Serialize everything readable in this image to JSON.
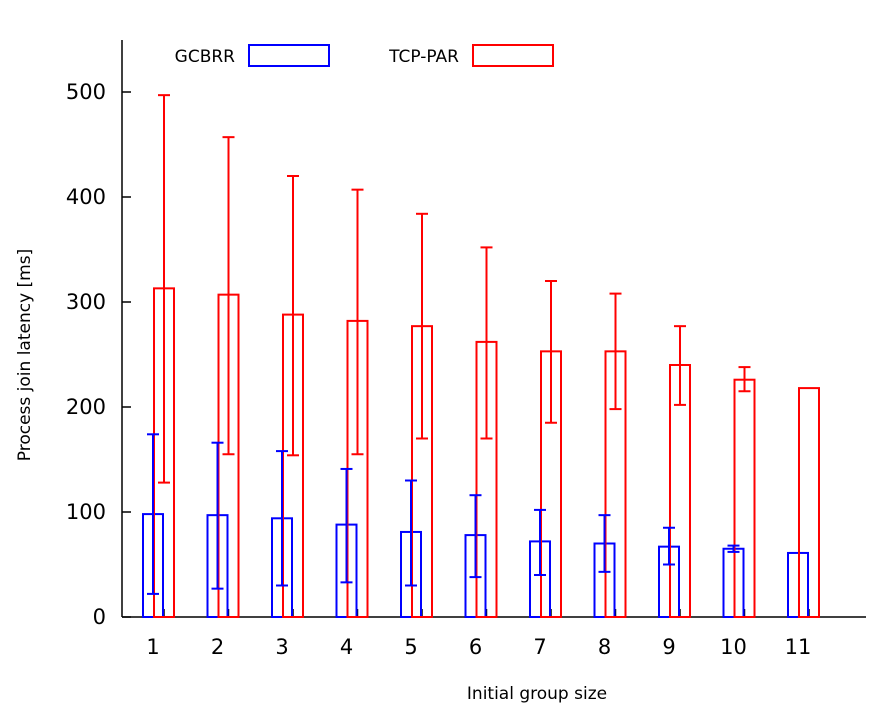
{
  "chart_data": {
    "type": "bar",
    "categories": [
      "1",
      "2",
      "3",
      "4",
      "5",
      "6",
      "7",
      "8",
      "9",
      "10",
      "11"
    ],
    "xlabel": "Initial group size",
    "ylabel": "Process join latency [ms]",
    "ylim": [
      0,
      550
    ],
    "yticks": [
      0,
      100,
      200,
      300,
      400,
      500
    ],
    "grid": false,
    "legend_position": "top-left",
    "error_bars": true,
    "series": [
      {
        "name": "GCBRR",
        "color": "#0000ff",
        "values": [
          98,
          97,
          94,
          88,
          81,
          78,
          72,
          70,
          67,
          65,
          61
        ],
        "err_low": [
          22,
          27,
          30,
          33,
          30,
          38,
          40,
          43,
          50,
          62,
          61
        ],
        "err_high": [
          174,
          166,
          158,
          141,
          130,
          116,
          102,
          97,
          85,
          68,
          61
        ]
      },
      {
        "name": "TCP-PAR",
        "color": "#ff0000",
        "values": [
          313,
          307,
          288,
          282,
          277,
          262,
          253,
          253,
          240,
          226,
          218
        ],
        "err_low": [
          128,
          155,
          154,
          155,
          170,
          170,
          185,
          198,
          202,
          215,
          218
        ],
        "err_high": [
          497,
          457,
          420,
          407,
          384,
          352,
          320,
          308,
          277,
          238,
          218
        ]
      }
    ]
  }
}
